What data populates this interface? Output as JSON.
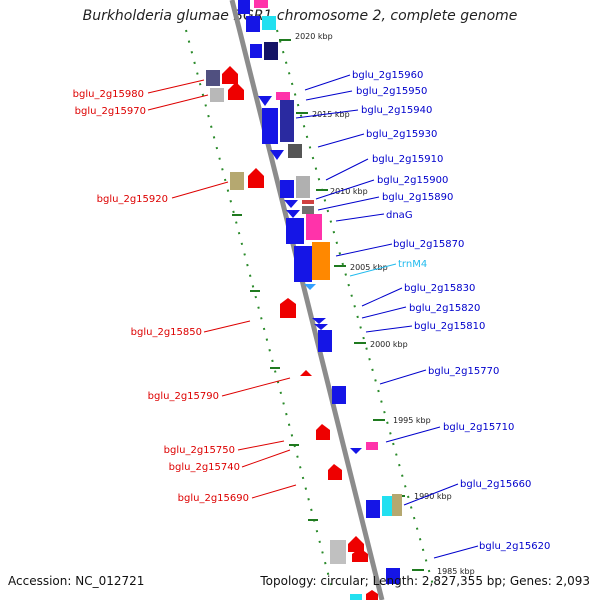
{
  "title": "Burkholderia glumae BGR1 chromosome 2, complete genome",
  "footer": {
    "accession": "Accession: NC_012721",
    "stats": "Topology: circular; Length: 2,827,355 bp; Genes: 2,093"
  },
  "colors": {
    "forward_label": "#0000cc",
    "reverse_label": "#dd0000",
    "trna_label": "#22bbee",
    "tick_mark": "#228822",
    "genome_axis": "#888888"
  },
  "scale_labels": [
    "2020 kbp",
    "2015 kbp",
    "2010 kbp",
    "2005 kbp",
    "2000 kbp",
    "1995 kbp",
    "1990 kbp",
    "1985 kbp"
  ],
  "right_labels": [
    {
      "text": "bglu_2g15960",
      "kind": "forward"
    },
    {
      "text": "bglu_2g15950",
      "kind": "forward"
    },
    {
      "text": "bglu_2g15940",
      "kind": "forward"
    },
    {
      "text": "bglu_2g15930",
      "kind": "forward"
    },
    {
      "text": "bglu_2g15910",
      "kind": "forward"
    },
    {
      "text": "bglu_2g15900",
      "kind": "forward"
    },
    {
      "text": "bglu_2g15890",
      "kind": "forward"
    },
    {
      "text": "dnaG",
      "kind": "forward"
    },
    {
      "text": "bglu_2g15870",
      "kind": "forward"
    },
    {
      "text": "trnM4",
      "kind": "trna"
    },
    {
      "text": "bglu_2g15830",
      "kind": "forward"
    },
    {
      "text": "bglu_2g15820",
      "kind": "forward"
    },
    {
      "text": "bglu_2g15810",
      "kind": "forward"
    },
    {
      "text": "bglu_2g15770",
      "kind": "forward"
    },
    {
      "text": "bglu_2g15710",
      "kind": "forward"
    },
    {
      "text": "bglu_2g15660",
      "kind": "forward"
    },
    {
      "text": "bglu_2g15620",
      "kind": "forward"
    }
  ],
  "left_labels": [
    {
      "text": "bglu_2g15980",
      "kind": "reverse"
    },
    {
      "text": "bglu_2g15970",
      "kind": "reverse"
    },
    {
      "text": "bglu_2g15920",
      "kind": "reverse"
    },
    {
      "text": "bglu_2g15850",
      "kind": "reverse"
    },
    {
      "text": "bglu_2g15790",
      "kind": "reverse"
    },
    {
      "text": "bglu_2g15750",
      "kind": "reverse"
    },
    {
      "text": "bglu_2g15740",
      "kind": "reverse"
    },
    {
      "text": "bglu_2g15690",
      "kind": "reverse"
    }
  ]
}
